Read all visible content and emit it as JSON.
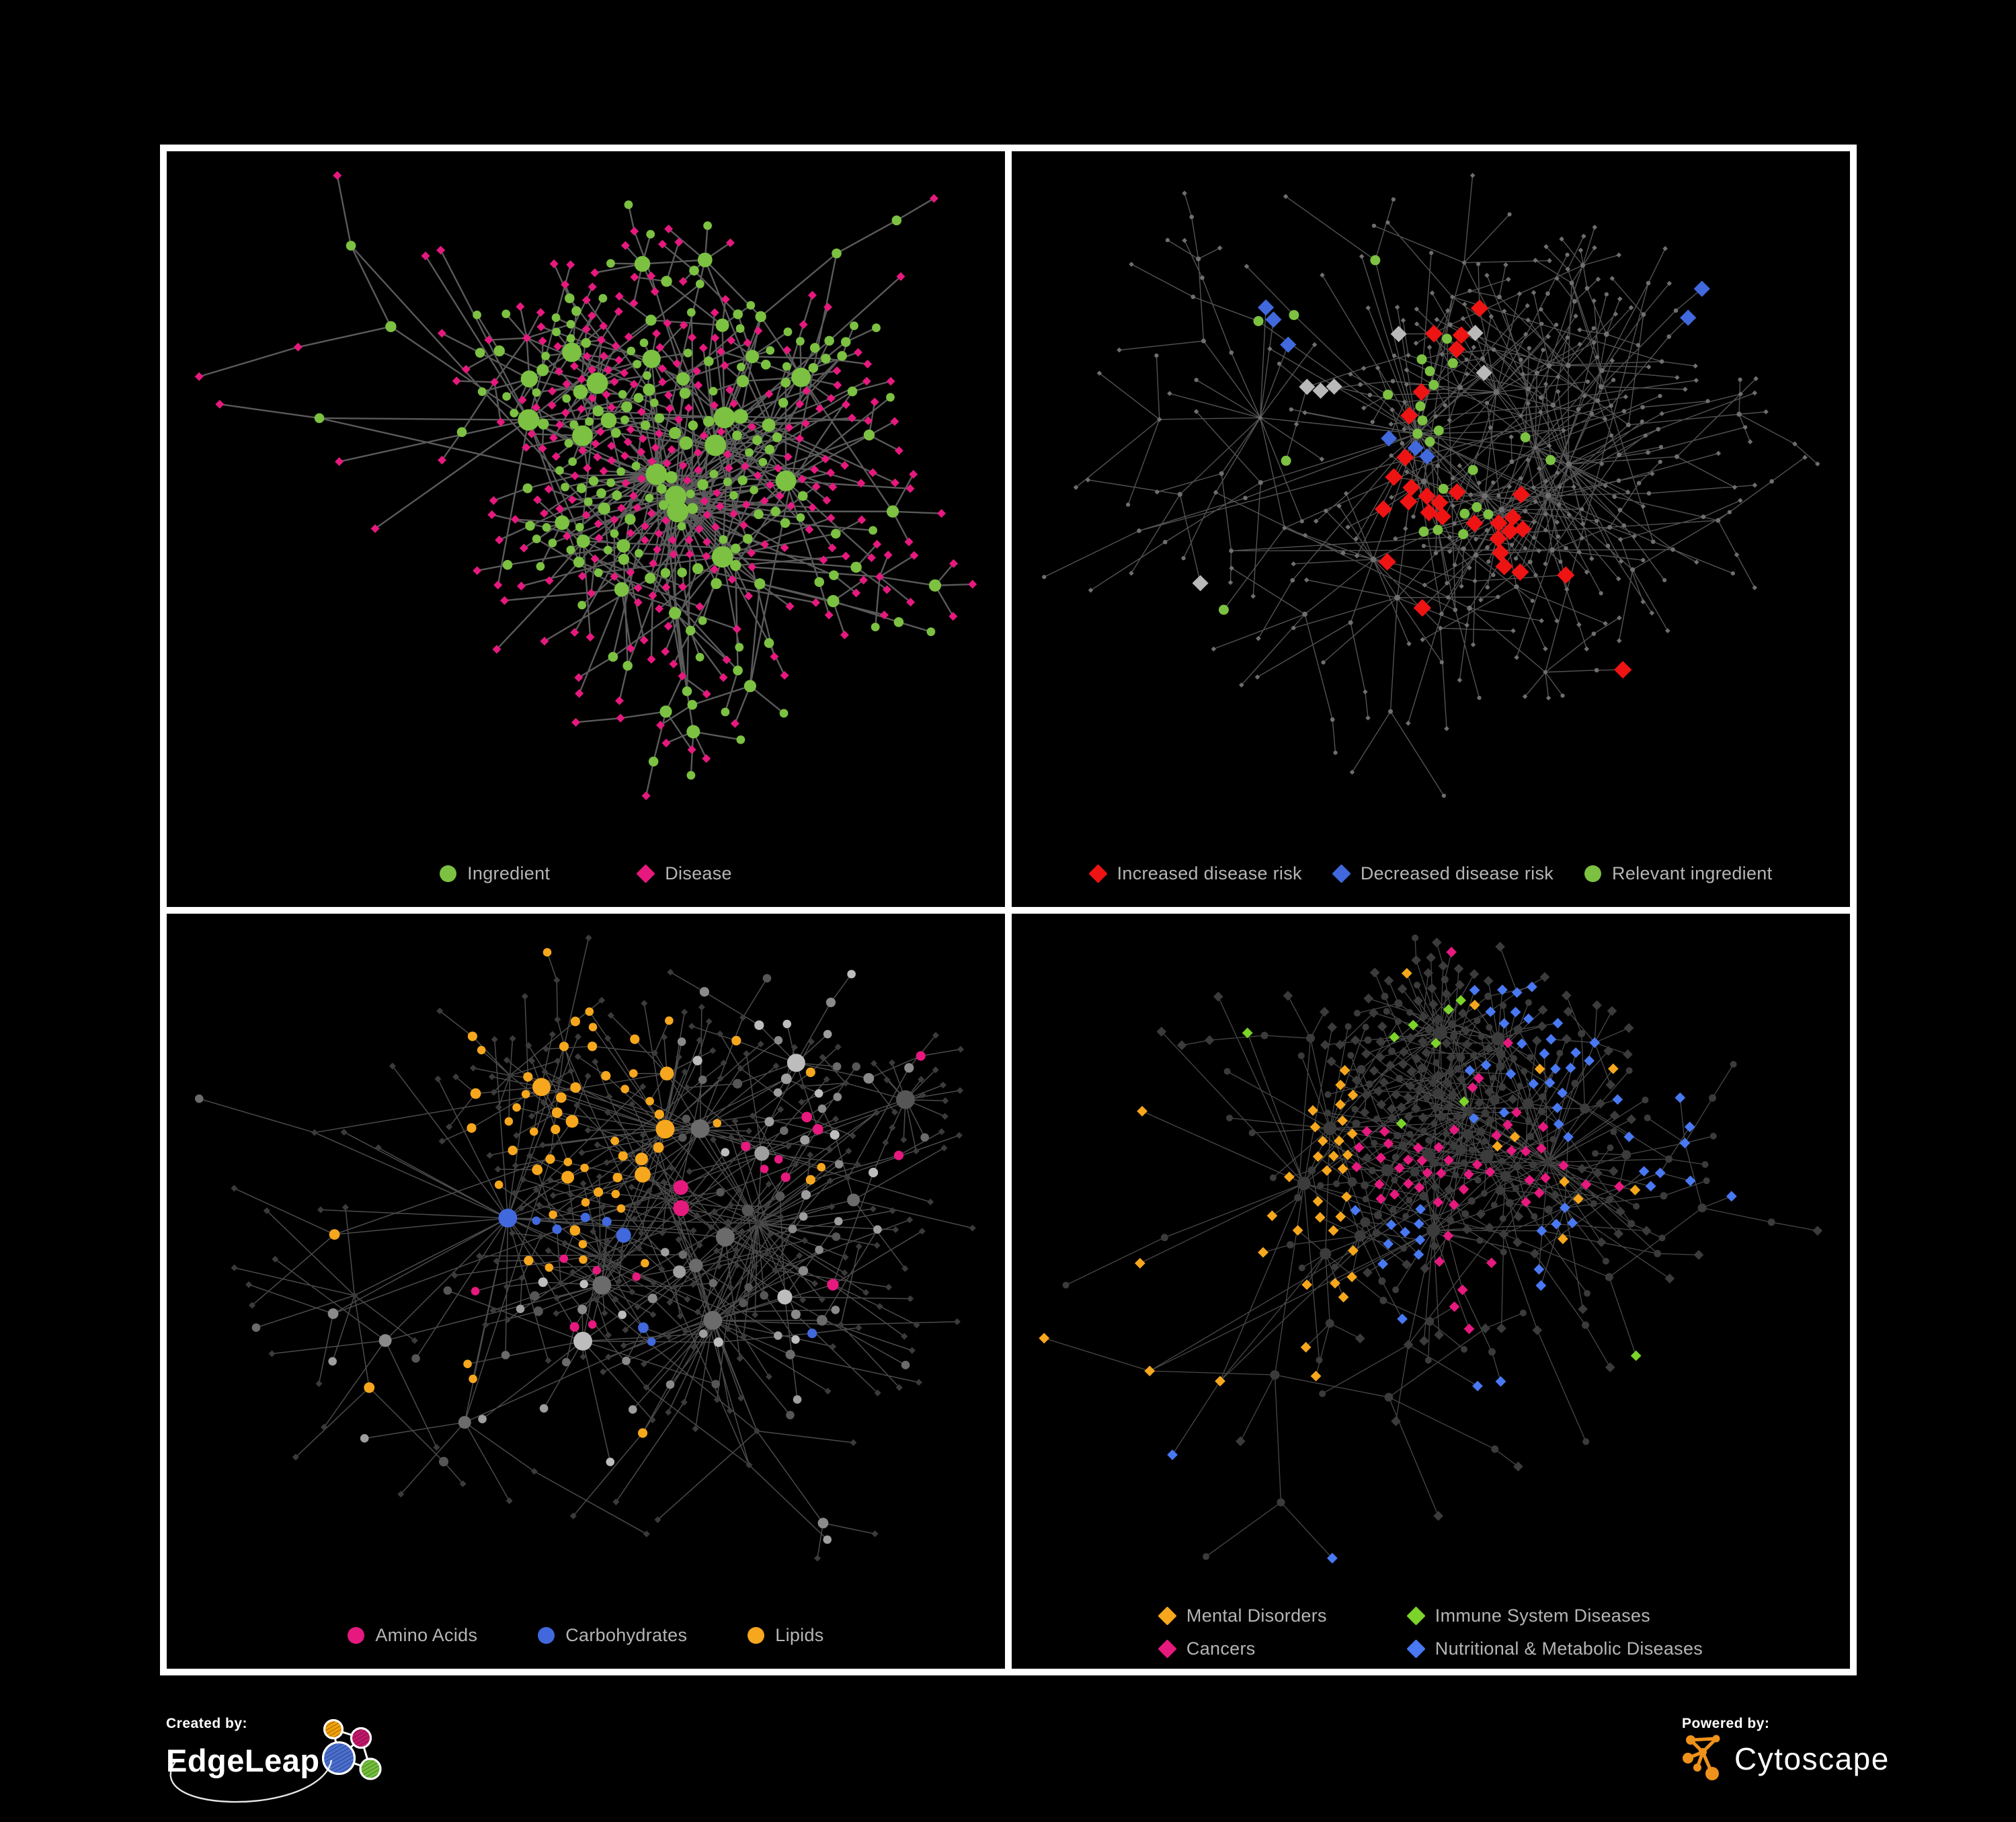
{
  "figure": {
    "background": "#000000",
    "frame_color": "#ffffff"
  },
  "footer": {
    "created_by_label": "Created by:",
    "created_by_brand": "EdgeLeap",
    "powered_by_label": "Powered by:",
    "powered_by_brand": "Cytoscape"
  },
  "colors": {
    "ingredient_green": "#7cc142",
    "disease_pink": "#e6197e",
    "risk_red": "#ee1414",
    "risk_blue": "#4169dd",
    "lipid_orange": "#f6a71d",
    "immune_green": "#7cd32a",
    "metabolic_blue": "#4979f2",
    "neutral_gray": "#9a9a9a",
    "dim_gray": "#3b3b3b",
    "edge_gray": "#6f6f6f",
    "legend_text": "#b5b5b5"
  },
  "panels": [
    {
      "id": "ingredient-disease",
      "legend": [
        {
          "shape": "circle",
          "color": "#7cc142",
          "label": "Ingredient"
        },
        {
          "shape": "diamond",
          "color": "#e6197e",
          "label": "Disease"
        }
      ],
      "net": {
        "seed": 7,
        "nodes": 500,
        "hub_bias": 1.5,
        "extra_edges": 24,
        "ing_clusters": 4,
        "edge": {
          "color": "#6a6a6a",
          "width": 2.4,
          "opacity": 0.85
        },
        "base": {
          "ing": {
            "shape": "circle",
            "color": "#7cc142",
            "rmin": 5.5,
            "rdeg": 0.9,
            "rmax": 16
          },
          "dis": {
            "shape": "diamond",
            "color": "#e6197e",
            "r": 6.2
          }
        },
        "highlights": []
      }
    },
    {
      "id": "disease-risk",
      "legend": [
        {
          "shape": "diamond",
          "color": "#ee1414",
          "label": "Increased disease risk"
        },
        {
          "shape": "diamond",
          "color": "#4169dd",
          "label": "Decreased disease risk"
        },
        {
          "shape": "circle",
          "color": "#7cc142",
          "label": "Relevant ingredient"
        }
      ],
      "net": {
        "seed": 19,
        "nodes": 470,
        "hub_bias": 1.45,
        "extra_edges": 22,
        "ing_clusters": 2,
        "edge": {
          "color": "#5c5c5c",
          "width": 1.4,
          "opacity": 0.9
        },
        "base": {
          "ing": {
            "shape": "circle",
            "color": "#6f6f6f",
            "rmin": 3.0,
            "rdeg": 0.15,
            "rmax": 4.4
          },
          "dis": {
            "shape": "diamond",
            "color": "#6f6f6f",
            "r": 3.6
          }
        },
        "highlights": [
          {
            "role": "dis",
            "shape": "diamond",
            "color": "#ee1414",
            "count": 26,
            "r": 12.5,
            "xband": [
              0.18,
              0.62
            ],
            "yband": [
              0.12,
              0.72
            ],
            "anchors": 7
          },
          {
            "role": "dis",
            "shape": "diamond",
            "color": "#ee1414",
            "count": 4,
            "r": 12.5,
            "xband": [
              0.55,
              0.95
            ],
            "yband": [
              0.6,
              0.98
            ],
            "anchors": 4
          },
          {
            "role": "dis",
            "shape": "diamond",
            "color": "#4169dd",
            "count": 6,
            "r": 11.5,
            "xband": [
              0.2,
              0.5
            ],
            "yband": [
              0.15,
              0.6
            ],
            "anchors": 2
          },
          {
            "role": "dis",
            "shape": "diamond",
            "color": "#4169dd",
            "count": 2,
            "r": 11.5,
            "xband": [
              0.82,
              1.0
            ],
            "yband": [
              0.0,
              0.3
            ],
            "anchors": 1
          },
          {
            "role": "dis",
            "shape": "diamond",
            "color": "#b9b9b9",
            "count": 7,
            "r": 11.5,
            "xband": [
              0.15,
              0.6
            ],
            "yband": [
              0.2,
              0.7
            ],
            "anchors": 5
          },
          {
            "role": "ing",
            "shape": "circle",
            "color": "#7cc142",
            "count": 26,
            "r": 7.5,
            "xband": [
              0.12,
              0.72
            ],
            "yband": [
              0.1,
              0.8
            ],
            "anchors": 9
          }
        ]
      }
    },
    {
      "id": "nutrient-categories",
      "legend": [
        {
          "shape": "circle",
          "color": "#e6197e",
          "label": "Amino Acids"
        },
        {
          "shape": "circle",
          "color": "#4169dd",
          "label": "Carbohydrates"
        },
        {
          "shape": "circle",
          "color": "#f6a71d",
          "label": "Lipids"
        }
      ],
      "net": {
        "seed": 40,
        "nodes": 480,
        "hub_bias": 1.5,
        "extra_edges": 24,
        "ing_clusters": 3,
        "edge": {
          "color": "#585858",
          "width": 1.5,
          "opacity": 0.85
        },
        "base": {
          "ing": {
            "shape": "circle",
            "color": "#9a9a9a",
            "shades": [
              "#9e9e9e",
              "#8a8a8a",
              "#bdbdbd",
              "#6b6b6b",
              "#565656"
            ],
            "rmin": 5.5,
            "rdeg": 0.8,
            "rmax": 14
          },
          "dis": {
            "shape": "diamond",
            "color": "#3b3b3b",
            "r": 4.8
          }
        },
        "highlights": [
          {
            "role": "ing",
            "shape": "circle",
            "color": "#f6a71d",
            "count": 48,
            "xband": [
              0.2,
              0.62
            ],
            "yband": [
              0.0,
              0.45
            ],
            "anchors": 7
          },
          {
            "role": "ing",
            "shape": "circle",
            "color": "#f6a71d",
            "count": 16,
            "xband": [
              0.0,
              1.0
            ],
            "yband": [
              0.0,
              1.0
            ],
            "anchors": 16
          },
          {
            "role": "ing",
            "shape": "circle",
            "color": "#4169dd",
            "count": 13,
            "xband": [
              0.2,
              0.6
            ],
            "yband": [
              0.0,
              0.5
            ],
            "anchors": 6
          },
          {
            "role": "ing",
            "shape": "circle",
            "color": "#4169dd",
            "count": 3,
            "xband": [
              0.55,
              1.0
            ],
            "yband": [
              0.4,
              1.0
            ],
            "anchors": 3
          },
          {
            "role": "ing",
            "shape": "circle",
            "color": "#e6197e",
            "count": 17,
            "xband": [
              0.0,
              1.0
            ],
            "yband": [
              0.0,
              1.0
            ],
            "anchors": 17
          }
        ]
      }
    },
    {
      "id": "disease-categories",
      "legend": [
        {
          "shape": "diamond",
          "color": "#f6a71d",
          "label": "Mental Disorders"
        },
        {
          "shape": "diamond",
          "color": "#7cd32a",
          "label": "Immune System Diseases"
        },
        {
          "shape": "diamond",
          "color": "#e6197e",
          "label": "Cancers"
        },
        {
          "shape": "diamond",
          "color": "#4979f2",
          "label": "Nutritional & Metabolic Diseases"
        }
      ],
      "net": {
        "seed": 61,
        "nodes": 480,
        "hub_bias": 1.5,
        "extra_edges": 22,
        "ing_clusters": 2,
        "edge": {
          "color": "#555555",
          "width": 1.3,
          "opacity": 0.85
        },
        "base": {
          "ing": {
            "shape": "circle",
            "color": "#3b3b3b",
            "rmin": 4.5,
            "rdeg": 0.5,
            "rmax": 10
          },
          "dis": {
            "shape": "diamond",
            "color": "#3b3b3b",
            "r": 7.0
          }
        },
        "highlights": [
          {
            "role": "dis",
            "shape": "diamond",
            "color": "#f6a71d",
            "count": 58,
            "r": 7.5,
            "xband": [
              0.0,
              0.4
            ],
            "yband": [
              0.2,
              0.75
            ],
            "anchors": 6
          },
          {
            "role": "dis",
            "shape": "diamond",
            "color": "#f6a71d",
            "count": 10,
            "r": 7.5,
            "xband": [
              0.0,
              1.0
            ],
            "yband": [
              0.0,
              1.0
            ],
            "anchors": 10
          },
          {
            "role": "dis",
            "shape": "diamond",
            "color": "#e6197e",
            "count": 42,
            "r": 7.5,
            "xband": [
              0.3,
              0.65
            ],
            "yband": [
              0.3,
              0.8
            ],
            "anchors": 6
          },
          {
            "role": "dis",
            "shape": "diamond",
            "color": "#e6197e",
            "count": 8,
            "r": 7.5,
            "xband": [
              0.5,
              1.0
            ],
            "yband": [
              0.0,
              1.0
            ],
            "anchors": 8
          },
          {
            "role": "dis",
            "shape": "diamond",
            "color": "#4979f2",
            "count": 46,
            "r": 7.5,
            "xband": [
              0.55,
              1.0
            ],
            "yband": [
              0.0,
              0.9
            ],
            "anchors": 9
          },
          {
            "role": "dis",
            "shape": "diamond",
            "color": "#4979f2",
            "count": 12,
            "r": 7.5,
            "xband": [
              0.0,
              0.5
            ],
            "yband": [
              0.3,
              1.0
            ],
            "anchors": 12
          },
          {
            "role": "dis",
            "shape": "diamond",
            "color": "#7cd32a",
            "count": 9,
            "r": 7.5,
            "xband": [
              0.1,
              0.9
            ],
            "yband": [
              0.1,
              0.9
            ],
            "anchors": 9
          }
        ]
      }
    }
  ]
}
